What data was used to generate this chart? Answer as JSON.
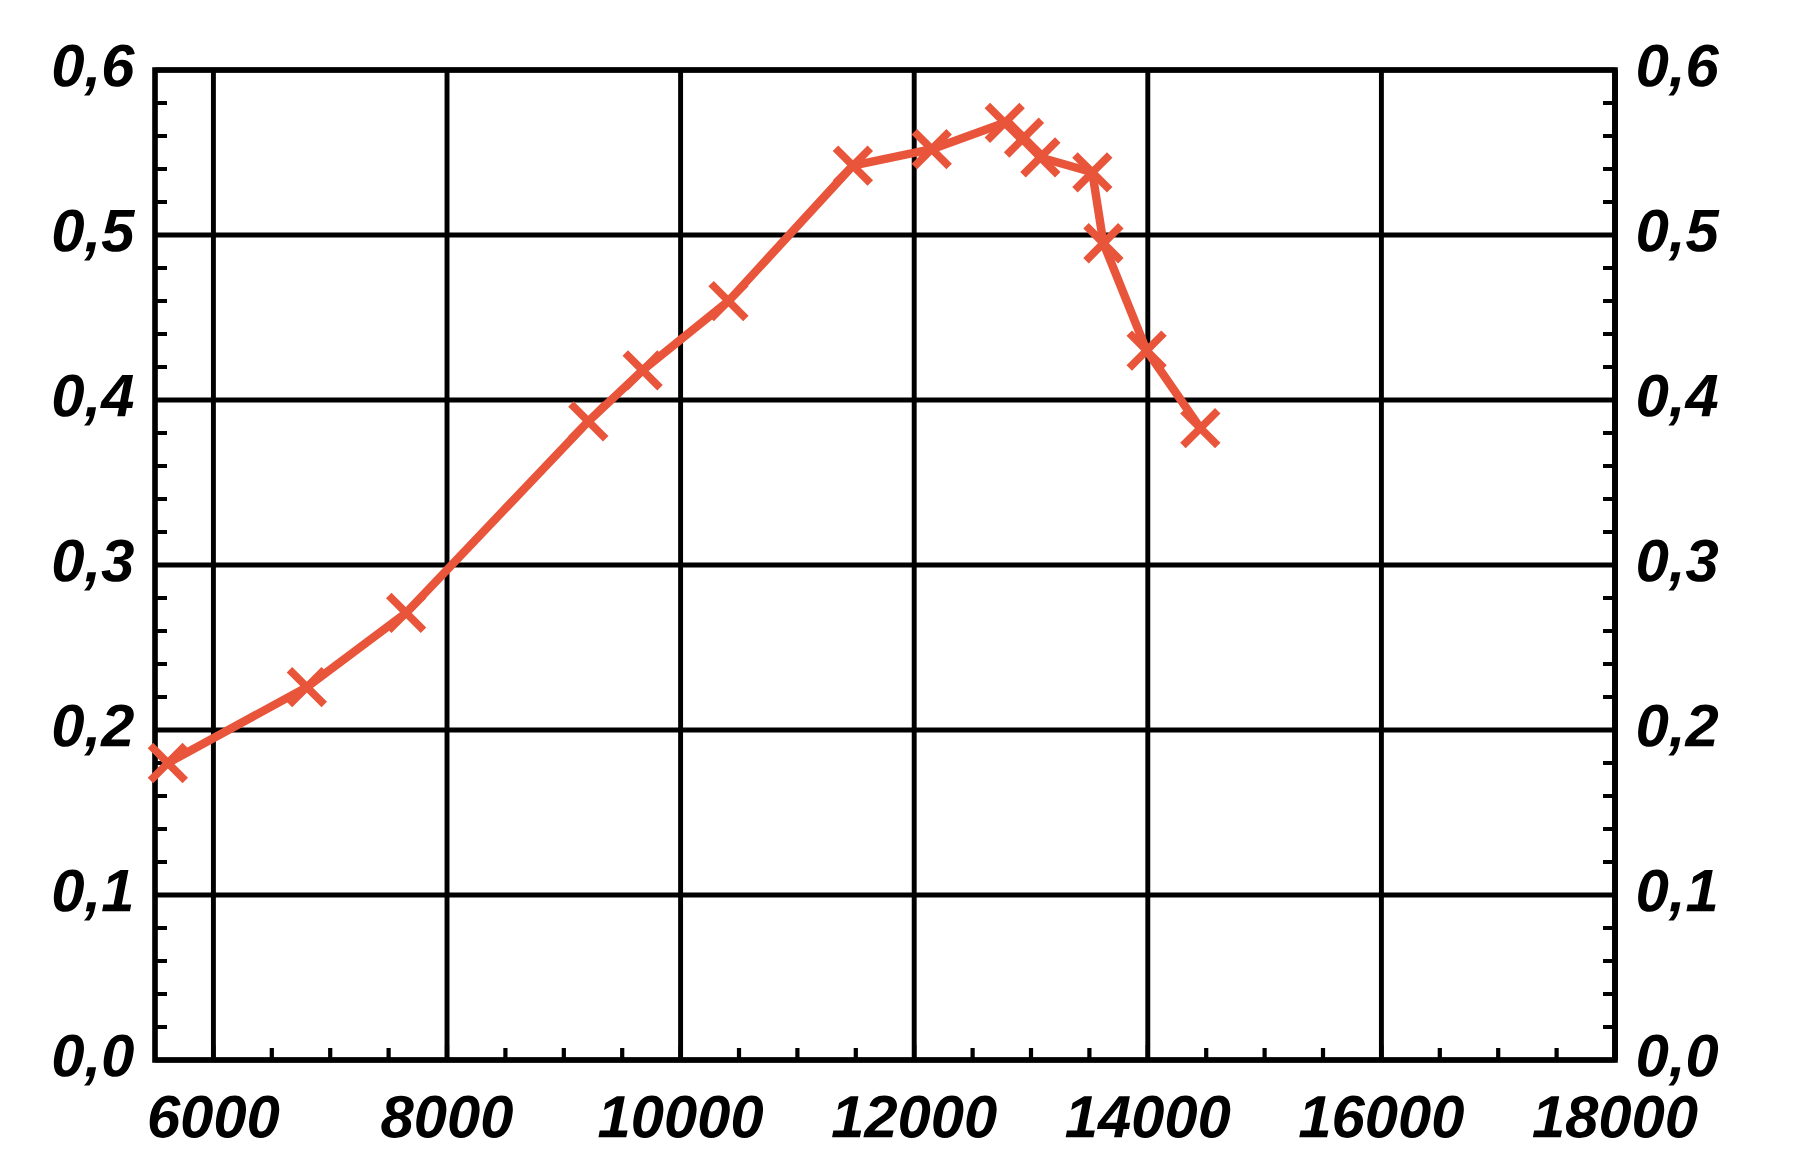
{
  "chart_data": {
    "type": "line",
    "xlim": [
      5500,
      18000
    ],
    "ylim": [
      0,
      0.6
    ],
    "xticks": [
      6000,
      8000,
      10000,
      12000,
      14000,
      16000,
      18000
    ],
    "yticks": [
      {
        "value": 0,
        "label": "0,0"
      },
      {
        "value": 0.1,
        "label": "0,1"
      },
      {
        "value": 0.2,
        "label": "0,2"
      },
      {
        "value": 0.3,
        "label": "0,3"
      },
      {
        "value": 0.4,
        "label": "0,4"
      },
      {
        "value": 0.5,
        "label": "0,5"
      },
      {
        "value": 0.6,
        "label": "0,6"
      }
    ],
    "y2lim": [
      0,
      0.6
    ],
    "y2ticks": [
      {
        "value": 0,
        "label": "0,0"
      },
      {
        "value": 0.1,
        "label": "0,1"
      },
      {
        "value": 0.2,
        "label": "0,2"
      },
      {
        "value": 0.3,
        "label": "0,3"
      },
      {
        "value": 0.4,
        "label": "0,4"
      },
      {
        "value": 0.5,
        "label": "0,5"
      },
      {
        "value": 0.6,
        "label": "0,6"
      }
    ],
    "grid": true,
    "marker": "cross",
    "line_style": "solid",
    "x": [
      5610,
      6800,
      7650,
      9210,
      9675,
      10410,
      11475,
      12150,
      12775,
      12940,
      13080,
      13525,
      13620,
      13990,
      14450
    ],
    "series": [
      {
        "color": "#e8553a",
        "values": [
          0.18,
          0.226,
          0.271,
          0.387,
          0.418,
          0.46,
          0.542,
          0.552,
          0.568,
          0.559,
          0.547,
          0.538,
          0.495,
          0.43,
          0.383
        ]
      }
    ]
  }
}
